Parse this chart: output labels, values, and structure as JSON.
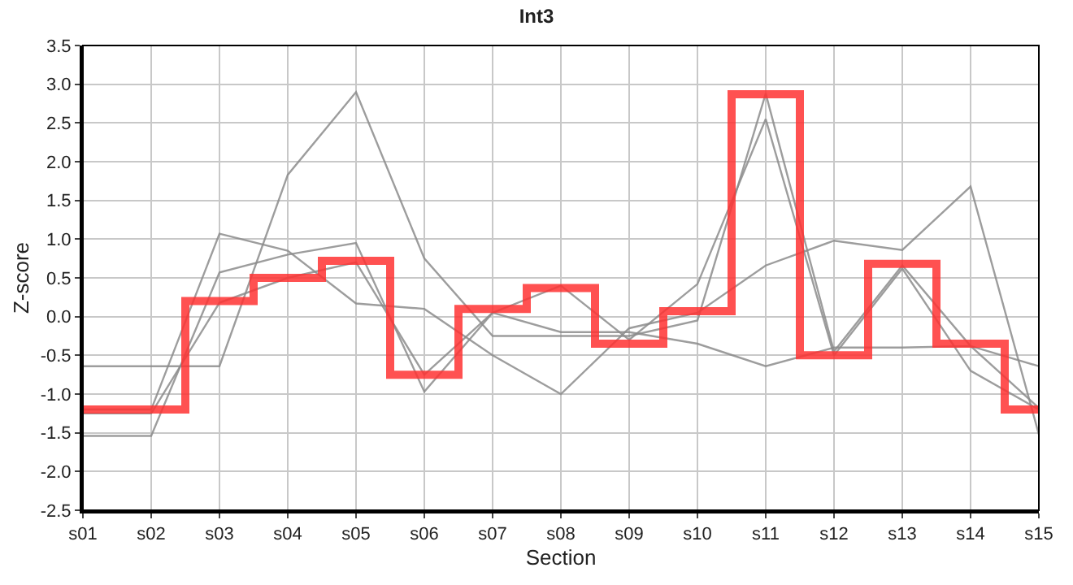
{
  "chart_data": {
    "type": "line",
    "title": "Int3",
    "xlabel": "Section",
    "ylabel": "Z-score",
    "categories": [
      "s01",
      "s02",
      "s03",
      "s04",
      "s05",
      "s06",
      "s07",
      "s08",
      "s09",
      "s10",
      "s11",
      "s12",
      "s13",
      "s14",
      "s15"
    ],
    "series": [
      {
        "color": "#8c8c8c",
        "values": [
          -0.64,
          -0.64,
          -0.64,
          1.83,
          2.9,
          0.75,
          -0.25,
          -0.25,
          -0.25,
          -0.05,
          2.88,
          -0.45,
          0.66,
          -0.38,
          -1.18
        ]
      },
      {
        "color": "#8c8c8c",
        "values": [
          -1.54,
          -1.54,
          0.57,
          0.8,
          0.95,
          -0.97,
          0.05,
          0.4,
          -0.3,
          0.42,
          2.55,
          -0.5,
          0.62,
          -0.7,
          -1.2
        ]
      },
      {
        "color": "#8c8c8c",
        "values": [
          -1.2,
          -1.2,
          1.07,
          0.85,
          0.17,
          0.1,
          -0.5,
          -1.0,
          -0.15,
          0.05,
          0.66,
          0.98,
          0.86,
          1.68,
          -1.52
        ]
      },
      {
        "color": "#8c8c8c",
        "values": [
          -1.25,
          -1.25,
          0.18,
          0.5,
          0.7,
          -0.75,
          0.05,
          -0.2,
          -0.2,
          -0.35,
          -0.64,
          -0.4,
          -0.4,
          -0.38,
          -0.64
        ]
      },
      {
        "type": "step",
        "color": "#ff3333",
        "values": [
          -1.2,
          -1.2,
          0.2,
          0.5,
          0.72,
          -0.75,
          0.1,
          0.37,
          -0.35,
          0.07,
          2.87,
          -0.5,
          0.68,
          -0.35,
          -1.2
        ]
      }
    ],
    "ylim": [
      -2.5,
      3.5
    ],
    "yticks": [
      -2.5,
      {
        "value": -2,
        "label": "-2.0"
      },
      -1.5,
      {
        "value": -1,
        "label": "-1.0"
      },
      -0.5,
      {
        "value": 0,
        "label": "0.0"
      },
      0.5,
      {
        "value": 1,
        "label": "1.0"
      },
      1.5,
      {
        "value": 2,
        "label": "2.0"
      },
      2.5,
      {
        "value": 3,
        "label": "3.0"
      },
      3.5
    ],
    "grid": true,
    "marker": "none",
    "line_style": "solid"
  }
}
